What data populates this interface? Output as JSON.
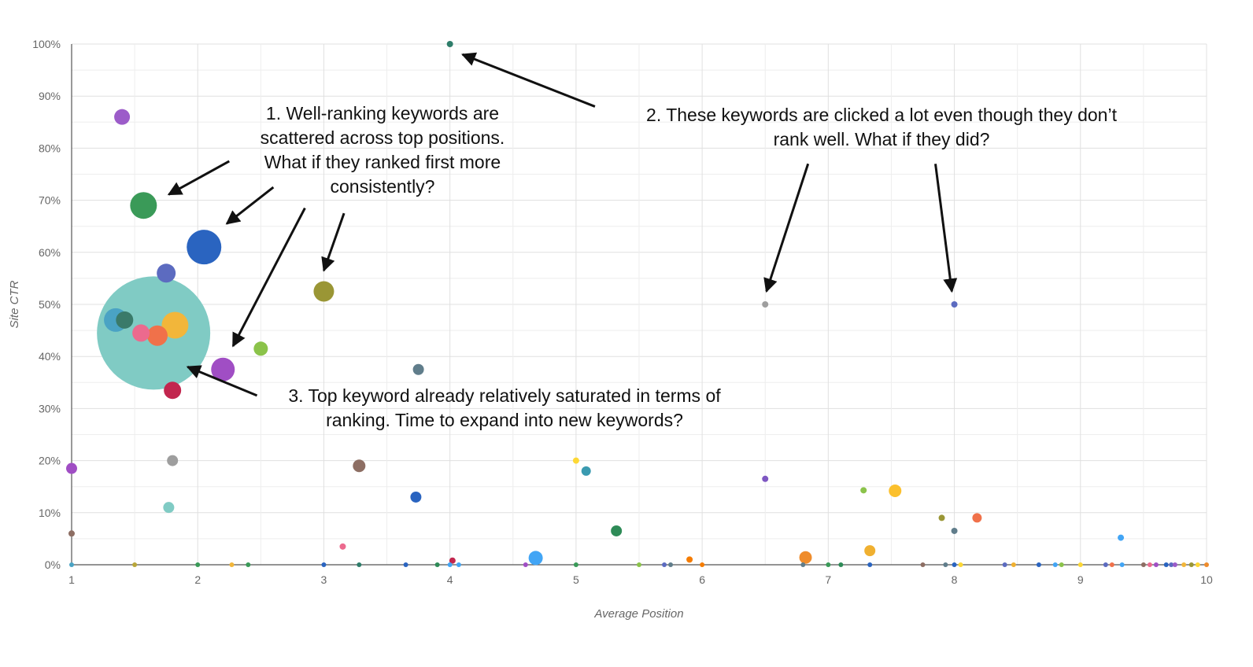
{
  "chart_data": {
    "type": "scatter",
    "xlabel": "Average Position",
    "ylabel": "Site CTR",
    "xlim": [
      1,
      10
    ],
    "ylim": [
      0,
      100
    ],
    "x_ticks": [
      "1",
      "2",
      "3",
      "4",
      "5",
      "6",
      "7",
      "8",
      "9",
      "10"
    ],
    "y_ticks": [
      "0%",
      "10%",
      "20%",
      "30%",
      "40%",
      "50%",
      "60%",
      "70%",
      "80%",
      "90%",
      "100%"
    ],
    "grid": true,
    "legend": "none",
    "points": [
      {
        "x": 1.65,
        "y": 44.5,
        "r": 72,
        "color": "#80cbc4"
      },
      {
        "x": 1.4,
        "y": 86,
        "r": 10,
        "color": "#9c5cc9"
      },
      {
        "x": 1.57,
        "y": 69,
        "r": 17,
        "color": "#3a9a58"
      },
      {
        "x": 2.05,
        "y": 61,
        "r": 22,
        "color": "#2a64c0"
      },
      {
        "x": 1.75,
        "y": 56,
        "r": 12,
        "color": "#5c6bc0"
      },
      {
        "x": 1.35,
        "y": 47,
        "r": 15,
        "color": "#4aa3c4"
      },
      {
        "x": 1.42,
        "y": 47,
        "r": 11,
        "color": "#3a7a6a"
      },
      {
        "x": 1.82,
        "y": 46,
        "r": 17,
        "color": "#f2b63a"
      },
      {
        "x": 1.55,
        "y": 44.5,
        "r": 11,
        "color": "#ec6a8e"
      },
      {
        "x": 1.68,
        "y": 44,
        "r": 13,
        "color": "#f0714a"
      },
      {
        "x": 1.8,
        "y": 33.5,
        "r": 11,
        "color": "#c2264e"
      },
      {
        "x": 2.2,
        "y": 37.5,
        "r": 15,
        "color": "#a04ec4"
      },
      {
        "x": 2.5,
        "y": 41.5,
        "r": 9,
        "color": "#8bc34a"
      },
      {
        "x": 3.0,
        "y": 52.5,
        "r": 13,
        "color": "#9a9635"
      },
      {
        "x": 3.75,
        "y": 37.5,
        "r": 7,
        "color": "#607d8b"
      },
      {
        "x": 4.0,
        "y": 100,
        "r": 4,
        "color": "#2e7d6a"
      },
      {
        "x": 6.5,
        "y": 50,
        "r": 4,
        "color": "#9e9e9e"
      },
      {
        "x": 8.0,
        "y": 50,
        "r": 4,
        "color": "#5c6bc0"
      },
      {
        "x": 1.0,
        "y": 18.5,
        "r": 7,
        "color": "#a04ec4"
      },
      {
        "x": 1.0,
        "y": 6,
        "r": 4,
        "color": "#8d6e63"
      },
      {
        "x": 1.8,
        "y": 20,
        "r": 7,
        "color": "#9e9e9e"
      },
      {
        "x": 1.77,
        "y": 11,
        "r": 7,
        "color": "#80cbc4"
      },
      {
        "x": 3.28,
        "y": 19,
        "r": 8,
        "color": "#8d6e63"
      },
      {
        "x": 3.73,
        "y": 13,
        "r": 7,
        "color": "#2a64c0"
      },
      {
        "x": 3.15,
        "y": 3.5,
        "r": 4,
        "color": "#ec6a8e"
      },
      {
        "x": 4.02,
        "y": 0.8,
        "r": 4,
        "color": "#c2264e"
      },
      {
        "x": 4.68,
        "y": 1.3,
        "r": 9,
        "color": "#42a5f5"
      },
      {
        "x": 5.0,
        "y": 20,
        "r": 4,
        "color": "#fdd835"
      },
      {
        "x": 5.08,
        "y": 18,
        "r": 6,
        "color": "#3a9ab0"
      },
      {
        "x": 5.32,
        "y": 6.5,
        "r": 7,
        "color": "#2e8b57"
      },
      {
        "x": 5.9,
        "y": 1,
        "r": 4,
        "color": "#f57c00"
      },
      {
        "x": 6.5,
        "y": 16.5,
        "r": 4,
        "color": "#7e57c2"
      },
      {
        "x": 6.82,
        "y": 1.4,
        "r": 8,
        "color": "#ef8c2c"
      },
      {
        "x": 7.28,
        "y": 14.3,
        "r": 4,
        "color": "#8bc34a"
      },
      {
        "x": 7.53,
        "y": 14.2,
        "r": 8,
        "color": "#fbc02d"
      },
      {
        "x": 7.33,
        "y": 2.7,
        "r": 7,
        "color": "#f0b030"
      },
      {
        "x": 7.9,
        "y": 9,
        "r": 4,
        "color": "#9a9635"
      },
      {
        "x": 8.18,
        "y": 9,
        "r": 6,
        "color": "#f0714a"
      },
      {
        "x": 8.0,
        "y": 6.5,
        "r": 4,
        "color": "#607d8b"
      },
      {
        "x": 9.32,
        "y": 5.2,
        "r": 4,
        "color": "#42a5f5"
      },
      {
        "x": 1.0,
        "y": 0,
        "r": 3,
        "color": "#4aa3c4"
      },
      {
        "x": 1.5,
        "y": 0,
        "r": 3,
        "color": "#b8a63a"
      },
      {
        "x": 2.0,
        "y": 0,
        "r": 3,
        "color": "#3a9a58"
      },
      {
        "x": 2.27,
        "y": 0,
        "r": 3,
        "color": "#f2b63a"
      },
      {
        "x": 2.4,
        "y": 0,
        "r": 3,
        "color": "#3a9a58"
      },
      {
        "x": 3.0,
        "y": 0,
        "r": 3,
        "color": "#2a64c0"
      },
      {
        "x": 3.28,
        "y": 0,
        "r": 3,
        "color": "#2e7d6a"
      },
      {
        "x": 3.65,
        "y": 0,
        "r": 3,
        "color": "#2a64c0"
      },
      {
        "x": 3.9,
        "y": 0,
        "r": 3,
        "color": "#2e8b57"
      },
      {
        "x": 4.0,
        "y": 0,
        "r": 3,
        "color": "#42a5f5"
      },
      {
        "x": 4.07,
        "y": 0,
        "r": 3,
        "color": "#42a5f5"
      },
      {
        "x": 4.6,
        "y": 0,
        "r": 3,
        "color": "#a04ec4"
      },
      {
        "x": 5.0,
        "y": 0,
        "r": 3,
        "color": "#3a9a58"
      },
      {
        "x": 5.5,
        "y": 0,
        "r": 3,
        "color": "#8bc34a"
      },
      {
        "x": 5.7,
        "y": 0,
        "r": 3,
        "color": "#5c6bc0"
      },
      {
        "x": 5.75,
        "y": 0,
        "r": 3,
        "color": "#607d8b"
      },
      {
        "x": 6.0,
        "y": 0,
        "r": 3,
        "color": "#f57c00"
      },
      {
        "x": 6.8,
        "y": 0,
        "r": 3,
        "color": "#607d8b"
      },
      {
        "x": 7.0,
        "y": 0,
        "r": 3,
        "color": "#3a9a58"
      },
      {
        "x": 7.1,
        "y": 0,
        "r": 3,
        "color": "#2e8b57"
      },
      {
        "x": 7.33,
        "y": 0,
        "r": 3,
        "color": "#2a64c0"
      },
      {
        "x": 7.75,
        "y": 0,
        "r": 3,
        "color": "#8d6e63"
      },
      {
        "x": 7.93,
        "y": 0,
        "r": 3,
        "color": "#607d8b"
      },
      {
        "x": 8.0,
        "y": 0,
        "r": 3,
        "color": "#2a64c0"
      },
      {
        "x": 8.05,
        "y": 0,
        "r": 3,
        "color": "#fdd835"
      },
      {
        "x": 8.4,
        "y": 0,
        "r": 3,
        "color": "#5c6bc0"
      },
      {
        "x": 8.47,
        "y": 0,
        "r": 3,
        "color": "#f0b030"
      },
      {
        "x": 8.67,
        "y": 0,
        "r": 3,
        "color": "#2a64c0"
      },
      {
        "x": 8.8,
        "y": 0,
        "r": 3,
        "color": "#42a5f5"
      },
      {
        "x": 8.85,
        "y": 0,
        "r": 3,
        "color": "#8bc34a"
      },
      {
        "x": 9.0,
        "y": 0,
        "r": 3,
        "color": "#fdd835"
      },
      {
        "x": 9.2,
        "y": 0,
        "r": 3,
        "color": "#5c6bc0"
      },
      {
        "x": 9.25,
        "y": 0,
        "r": 3,
        "color": "#f0714a"
      },
      {
        "x": 9.33,
        "y": 0,
        "r": 3,
        "color": "#42a5f5"
      },
      {
        "x": 9.5,
        "y": 0,
        "r": 3,
        "color": "#8d6e63"
      },
      {
        "x": 9.55,
        "y": 0,
        "r": 3,
        "color": "#ec6a8e"
      },
      {
        "x": 9.6,
        "y": 0,
        "r": 3,
        "color": "#a04ec4"
      },
      {
        "x": 9.68,
        "y": 0,
        "r": 3,
        "color": "#2a64c0"
      },
      {
        "x": 9.72,
        "y": 0,
        "r": 3,
        "color": "#5c6bc0"
      },
      {
        "x": 9.75,
        "y": 0,
        "r": 3,
        "color": "#9c5cc9"
      },
      {
        "x": 9.82,
        "y": 0,
        "r": 3,
        "color": "#f2b63a"
      },
      {
        "x": 9.88,
        "y": 0,
        "r": 3,
        "color": "#9a9635"
      },
      {
        "x": 9.93,
        "y": 0,
        "r": 3,
        "color": "#fdd835"
      },
      {
        "x": 10.0,
        "y": 0,
        "r": 3,
        "color": "#ef8c2c"
      }
    ],
    "annotations": [
      {
        "lines": [
          "1. Well-ranking keywords are",
          "scattered across top positions.",
          "What if they ranked first more",
          "consistently?"
        ],
        "arrows": [
          {
            "from": [
              2.25,
              77.5
            ],
            "to": [
              1.77,
              71.1
            ]
          },
          {
            "from": [
              2.6,
              72.5
            ],
            "to": [
              2.23,
              65.5
            ]
          },
          {
            "from": [
              2.85,
              68.5
            ],
            "to": [
              2.28,
              42
            ]
          },
          {
            "from": [
              3.16,
              67.5
            ],
            "to": [
              3.0,
              56.5
            ]
          }
        ]
      },
      {
        "lines": [
          "2. These keywords are clicked a lot even though they don’t",
          "rank well. What if they did?"
        ],
        "arrows": [
          {
            "from": [
              5.15,
              88
            ],
            "to": [
              4.1,
              98
            ]
          },
          {
            "from": [
              6.84,
              77
            ],
            "to": [
              6.51,
              52.5
            ]
          },
          {
            "from": [
              7.85,
              77
            ],
            "to": [
              7.98,
              52.5
            ]
          }
        ]
      },
      {
        "lines": [
          "3. Top keyword already relatively saturated in terms of",
          "ranking. Time to expand into new keywords?"
        ],
        "arrows": [
          {
            "from": [
              2.47,
              32.5
            ],
            "to": [
              1.92,
              38
            ]
          }
        ]
      }
    ]
  }
}
